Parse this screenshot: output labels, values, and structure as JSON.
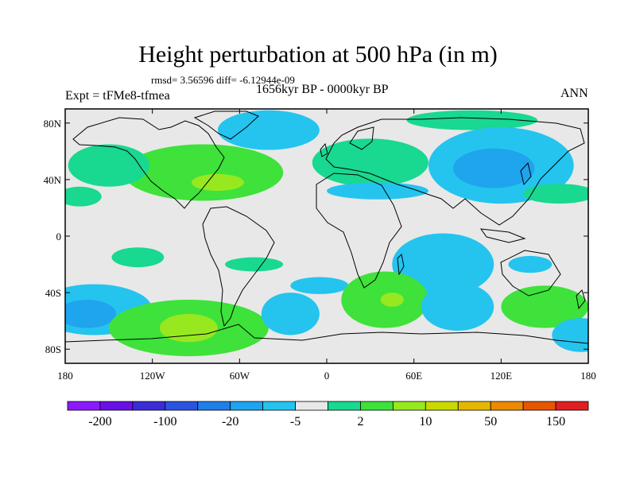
{
  "title": "Height perturbation at 500 hPa (in m)",
  "stats": "rmsd= 3.56596 diff= -6.12944e-09",
  "time_period": "1656kyr BP - 0000kyr BP",
  "experiment": "Expt = tFMe8-tfmea",
  "season": "ANN",
  "map": {
    "projection": "cylindrical equidistant",
    "lon_range": [
      -180,
      180
    ],
    "lat_range": [
      -90,
      90
    ],
    "lat_ticks": [
      {
        "lat": 80,
        "label": "80N"
      },
      {
        "lat": 40,
        "label": "40N"
      },
      {
        "lat": 0,
        "label": "0"
      },
      {
        "lat": -40,
        "label": "40S"
      },
      {
        "lat": -80,
        "label": "80S"
      }
    ],
    "lon_ticks": [
      {
        "lon": -180,
        "label": "180"
      },
      {
        "lon": -120,
        "label": "120W"
      },
      {
        "lon": -60,
        "label": "60W"
      },
      {
        "lon": 0,
        "label": "0"
      },
      {
        "lon": 60,
        "label": "60E"
      },
      {
        "lon": 120,
        "label": "120E"
      },
      {
        "lon": 180,
        "label": "180"
      }
    ]
  },
  "chart_data": {
    "type": "heatmap",
    "title": "Height perturbation at 500 hPa (in m)",
    "variable": "500 hPa geopotential height perturbation (m)",
    "colorbar": {
      "colors": [
        "#8c1aff",
        "#6a10e6",
        "#3c2bd9",
        "#2a54e0",
        "#1f7ee8",
        "#1fa4ee",
        "#24c4ef",
        "#e8e8e8",
        "#19d890",
        "#3ee23a",
        "#98e81f",
        "#c8d900",
        "#e4b800",
        "#ec8a00",
        "#e65600",
        "#e02020"
      ],
      "labels": [
        {
          "after_box": 1,
          "text": "-200"
        },
        {
          "after_box": 3,
          "text": "-100"
        },
        {
          "after_box": 5,
          "text": "-20"
        },
        {
          "after_box": 7,
          "text": "-5"
        },
        {
          "after_box": 9,
          "text": "2"
        },
        {
          "after_box": 11,
          "text": "10"
        },
        {
          "after_box": 13,
          "text": "50"
        },
        {
          "after_box": 15,
          "text": "150"
        }
      ]
    },
    "anomalies": [
      {
        "name": "north-atlantic-high",
        "lon": -85,
        "lat": 45,
        "rlon": 55,
        "rlat": 20,
        "class": 9
      },
      {
        "name": "north-atlantic-high-core",
        "lon": -75,
        "lat": 38,
        "rlon": 18,
        "rlat": 6,
        "class": 10
      },
      {
        "name": "north-pacific-high",
        "lon": -150,
        "lat": 50,
        "rlon": 28,
        "rlat": 15,
        "class": 8
      },
      {
        "name": "subtropical-pacific-high",
        "lon": -170,
        "lat": 28,
        "rlon": 15,
        "rlat": 7,
        "class": 8
      },
      {
        "name": "eurasia-high",
        "lon": 30,
        "lat": 52,
        "rlon": 40,
        "rlat": 17,
        "class": 8
      },
      {
        "name": "arctic-high",
        "lon": 100,
        "lat": 82,
        "rlon": 45,
        "rlat": 7,
        "class": 8
      },
      {
        "name": "greenland-low",
        "lon": -40,
        "lat": 75,
        "rlon": 35,
        "rlat": 14,
        "class": 6
      },
      {
        "name": "northeast-asia-low",
        "lon": 120,
        "lat": 50,
        "rlon": 50,
        "rlat": 27,
        "class": 6
      },
      {
        "name": "northeast-asia-low-core",
        "lon": 115,
        "lat": 48,
        "rlon": 28,
        "rlat": 14,
        "class": 5
      },
      {
        "name": "mediterranean-low",
        "lon": 35,
        "lat": 32,
        "rlon": 35,
        "rlat": 6,
        "class": 6
      },
      {
        "name": "west-pacific-high",
        "lon": 160,
        "lat": 30,
        "rlon": 25,
        "rlat": 7,
        "class": 8
      },
      {
        "name": "east-pacific-tropical-high",
        "lon": -130,
        "lat": -15,
        "rlon": 18,
        "rlat": 7,
        "class": 8
      },
      {
        "name": "south-america-high",
        "lon": -50,
        "lat": -20,
        "rlon": 20,
        "rlat": 5,
        "class": 8
      },
      {
        "name": "indian-ocean-low",
        "lon": 80,
        "lat": -20,
        "rlon": 35,
        "rlat": 22,
        "class": 6
      },
      {
        "name": "south-atlantic-low",
        "lon": -5,
        "lat": -35,
        "rlon": 20,
        "rlat": 6,
        "class": 6
      },
      {
        "name": "australia-low",
        "lon": 140,
        "lat": -20,
        "rlon": 15,
        "rlat": 6,
        "class": 6
      },
      {
        "name": "south-pacific-low",
        "lon": -160,
        "lat": -52,
        "rlon": 40,
        "rlat": 18,
        "class": 6
      },
      {
        "name": "south-pacific-low-core",
        "lon": -165,
        "lat": -55,
        "rlon": 20,
        "rlat": 10,
        "class": 5
      },
      {
        "name": "southeast-pacific-high",
        "lon": -95,
        "lat": -65,
        "rlon": 55,
        "rlat": 20,
        "class": 9
      },
      {
        "name": "southeast-pacific-high-core",
        "lon": -95,
        "lat": -65,
        "rlon": 20,
        "rlat": 10,
        "class": 10
      },
      {
        "name": "drake-low",
        "lon": -25,
        "lat": -55,
        "rlon": 20,
        "rlat": 15,
        "class": 6
      },
      {
        "name": "south-africa-high",
        "lon": 40,
        "lat": -45,
        "rlon": 30,
        "rlat": 20,
        "class": 9
      },
      {
        "name": "south-africa-high-core",
        "lon": 45,
        "lat": -45,
        "rlon": 8,
        "rlat": 5,
        "class": 10
      },
      {
        "name": "southern-ocean-low",
        "lon": 90,
        "lat": -50,
        "rlon": 25,
        "rlat": 17,
        "class": 6
      },
      {
        "name": "south-australia-high",
        "lon": 150,
        "lat": -50,
        "rlon": 30,
        "rlat": 15,
        "class": 9
      },
      {
        "name": "antarctic-edge-low",
        "lon": 175,
        "lat": -70,
        "rlon": 20,
        "rlat": 12,
        "class": 6
      }
    ]
  }
}
